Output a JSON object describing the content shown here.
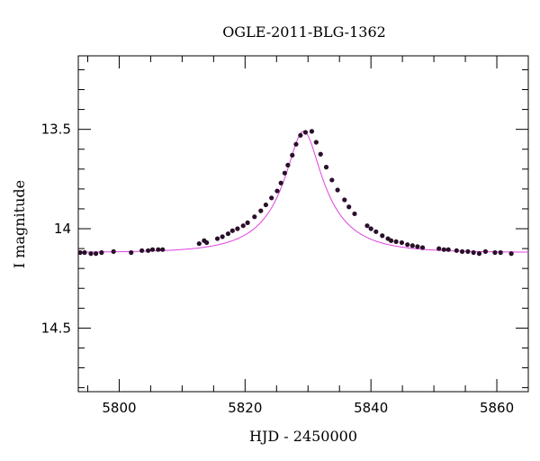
{
  "chart_data": {
    "type": "scatter",
    "title": "OGLE-2011-BLG-1362",
    "xlabel": "HJD - 2450000",
    "ylabel": "I magnitude",
    "xlim": [
      5793.5,
      5865
    ],
    "ylim": [
      14.82,
      13.13
    ],
    "y_inverted": true,
    "x_ticks": [
      5800,
      5820,
      5840,
      5860
    ],
    "y_ticks": [
      13.5,
      14,
      14.5
    ],
    "grid": false,
    "colors": {
      "points": "#2a0f2a",
      "model": "#e040e0",
      "axes": "#000000"
    },
    "model": {
      "baseline": 14.12,
      "peak_mag": 13.51,
      "t0": 5829.3,
      "u0": 0.27,
      "tE": 9.3
    },
    "series": [
      {
        "type": "scatter",
        "x": [
          5793.8,
          5794.5,
          5795.5,
          5796.3,
          5797.2,
          5799.1,
          5801.9,
          5803.6,
          5804.6,
          5805.3,
          5806.2,
          5806.9,
          5812.7,
          5813.5,
          5813.9,
          5815.6,
          5816.4,
          5817.3,
          5818.0,
          5818.8,
          5819.7,
          5820.4,
          5821.5,
          5822.5,
          5823.3,
          5824.2,
          5825.1,
          5825.7,
          5826.3,
          5826.8,
          5827.5,
          5828.1,
          5828.8,
          5829.6,
          5830.6,
          5831.3,
          5832.0,
          5832.9,
          5833.8,
          5834.7,
          5835.8,
          5836.5,
          5837.4,
          5839.4,
          5840.0,
          5840.8,
          5841.8,
          5842.7,
          5843.2,
          5844.0,
          5844.9,
          5845.8,
          5846.6,
          5847.4,
          5848.2,
          5850.8,
          5851.6,
          5852.3,
          5853.6,
          5854.5,
          5855.4,
          5856.3,
          5857.2,
          5858.2,
          5859.7,
          5860.6,
          5862.3
        ],
        "y": [
          14.12,
          14.12,
          14.125,
          14.125,
          14.12,
          14.115,
          14.12,
          14.11,
          14.11,
          14.105,
          14.105,
          14.105,
          14.075,
          14.06,
          14.07,
          14.05,
          14.04,
          14.025,
          14.01,
          14.0,
          13.985,
          13.97,
          13.94,
          13.91,
          13.88,
          13.845,
          13.81,
          13.77,
          13.72,
          13.68,
          13.63,
          13.575,
          13.53,
          13.515,
          13.51,
          13.565,
          13.625,
          13.69,
          13.755,
          13.805,
          13.855,
          13.89,
          13.925,
          13.985,
          14.0,
          14.015,
          14.035,
          14.05,
          14.06,
          14.065,
          14.07,
          14.08,
          14.085,
          14.09,
          14.095,
          14.1,
          14.105,
          14.105,
          14.11,
          14.115,
          14.115,
          14.12,
          14.125,
          14.115,
          14.12,
          14.12,
          14.125
        ]
      }
    ]
  }
}
